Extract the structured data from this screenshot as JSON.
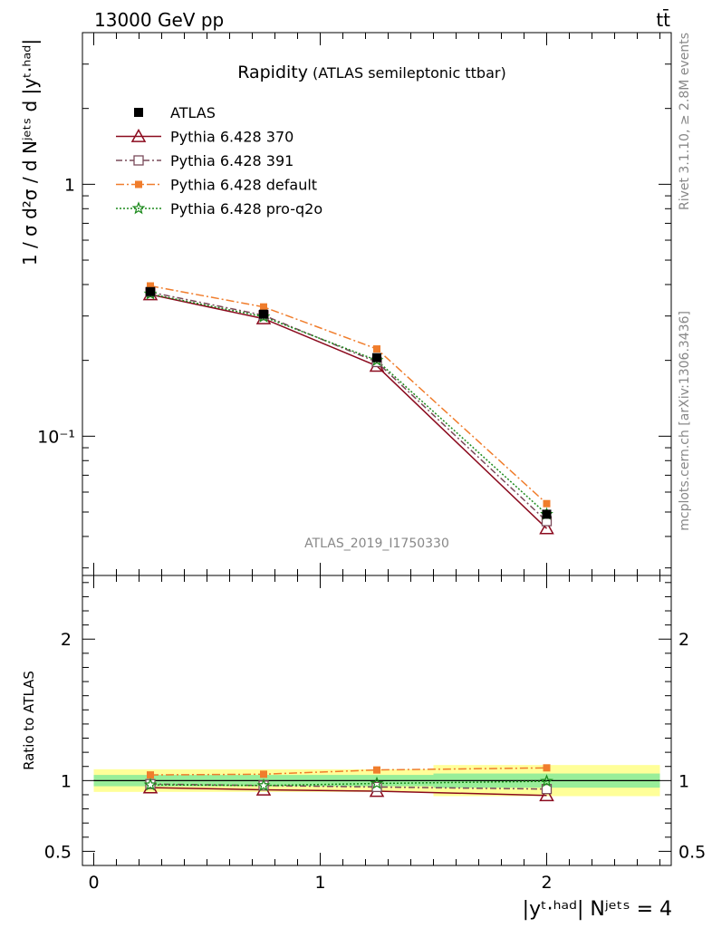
{
  "header": {
    "left": "13000 GeV pp",
    "right": "tt̄"
  },
  "side": {
    "rivet": "Rivet 3.1.10, ≥ 2.8M events",
    "mcplots": "mcplots.cern.ch [arXiv:1306.3436]"
  },
  "watermark": "ATLAS_2019_I1750330",
  "chart_data": [
    {
      "type": "line",
      "title": "Rapidity",
      "subtitle": "(ATLAS semileptonic ttbar)",
      "ylabel": "1 / σ d²σ / d Nʲᵉᵗˢ d |yᵗ·ʰᵃᵈ|",
      "yscale": "log",
      "ylim": [
        0.028,
        4.0
      ],
      "xlim": [
        -0.05,
        2.55
      ],
      "yticks": [
        {
          "value": 0.1,
          "label": "10⁻¹"
        },
        {
          "value": 1,
          "label": "1"
        }
      ],
      "x": [
        0.25,
        0.75,
        1.25,
        2.0
      ],
      "legend_position": "top-left",
      "series": [
        {
          "name": "ATLAS",
          "color": "#000000",
          "marker": "square",
          "values": [
            0.375,
            0.305,
            0.205,
            0.049
          ]
        },
        {
          "name": "Pythia 6.428 370",
          "color": "#8b0a1e",
          "marker": "triangle",
          "dash": "",
          "values": [
            0.365,
            0.293,
            0.19,
            0.043
          ]
        },
        {
          "name": "Pythia 6.428 391",
          "color": "#7a4a5a",
          "marker": "square-open",
          "dash": "7,3,2,3",
          "values": [
            0.373,
            0.302,
            0.197,
            0.046
          ]
        },
        {
          "name": "Pythia 6.428 default",
          "color": "#f07d2c",
          "marker": "square-filled",
          "dash": "9,3,2,3",
          "values": [
            0.395,
            0.326,
            0.222,
            0.054
          ]
        },
        {
          "name": "Pythia 6.428 pro-q2o",
          "color": "#1d8a1d",
          "marker": "star",
          "dash": "2,2",
          "values": [
            0.367,
            0.298,
            0.2,
            0.049
          ]
        }
      ]
    },
    {
      "type": "line",
      "ylabel": "Ratio to ATLAS",
      "xlabel": "|yᵗ·ʰᵃᵈ| Nʲᵉᵗˢ = 4",
      "ylim": [
        0.4,
        2.45
      ],
      "xlim": [
        -0.05,
        2.55
      ],
      "xticks": [
        0,
        1,
        2
      ],
      "yticks": [
        {
          "value": 0.5,
          "label": "0.5"
        },
        {
          "value": 1,
          "label": "1"
        },
        {
          "value": 2,
          "label": "2"
        }
      ],
      "uncertainty_bins": [
        {
          "x0": 0.0,
          "x1": 0.5,
          "inner": [
            0.96,
            1.04
          ],
          "outer": [
            0.92,
            1.08
          ]
        },
        {
          "x0": 0.5,
          "x1": 1.0,
          "inner": [
            0.96,
            1.04
          ],
          "outer": [
            0.92,
            1.08
          ]
        },
        {
          "x0": 1.0,
          "x1": 1.5,
          "inner": [
            0.96,
            1.04
          ],
          "outer": [
            0.92,
            1.08
          ]
        },
        {
          "x0": 1.5,
          "x1": 2.5,
          "inner": [
            0.95,
            1.05
          ],
          "outer": [
            0.89,
            1.11
          ]
        }
      ],
      "x": [
        0.25,
        0.75,
        1.25,
        2.0
      ],
      "series": [
        {
          "name": "Pythia 6.428 370",
          "values": [
            0.95,
            0.935,
            0.925,
            0.895
          ]
        },
        {
          "name": "Pythia 6.428 391",
          "values": [
            0.975,
            0.965,
            0.955,
            0.94
          ]
        },
        {
          "name": "Pythia 6.428 default",
          "values": [
            1.04,
            1.045,
            1.075,
            1.09
          ]
        },
        {
          "name": "Pythia 6.428 pro-q2o",
          "values": [
            0.97,
            0.965,
            0.98,
            0.995
          ]
        }
      ]
    }
  ]
}
